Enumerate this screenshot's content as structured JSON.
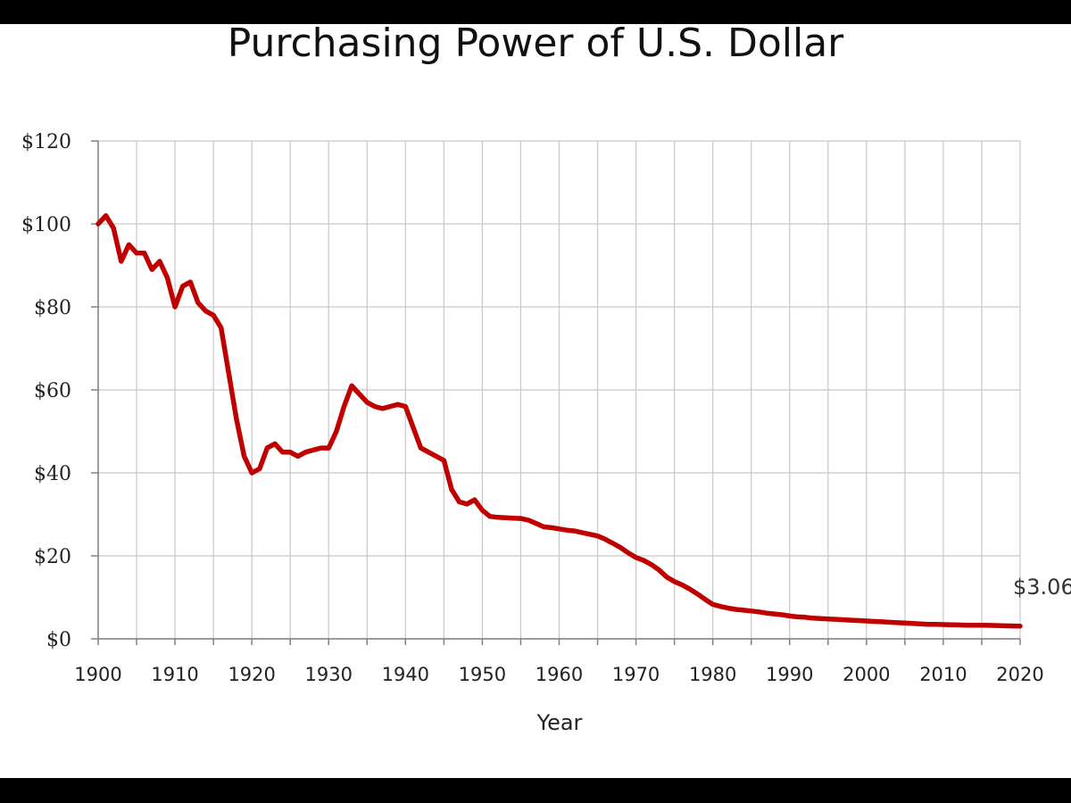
{
  "chart_data": {
    "type": "line",
    "title": "Purchasing Power of U.S. Dollar",
    "xlabel": "Year",
    "ylabel": "",
    "xlim": [
      1900,
      2020
    ],
    "ylim": [
      0,
      120
    ],
    "x_ticks": [
      1900,
      1910,
      1920,
      1930,
      1940,
      1950,
      1960,
      1970,
      1980,
      1990,
      2000,
      2010,
      2020
    ],
    "y_ticks": [
      0,
      20,
      40,
      60,
      80,
      100,
      120
    ],
    "y_tick_labels": [
      "$0",
      "$20",
      "$40",
      "$60",
      "$80",
      "$100",
      "$120"
    ],
    "grid": true,
    "line_color": "#c00000",
    "annotation": {
      "text": "$3.06",
      "x": 2020,
      "y": 3.06
    },
    "series": [
      {
        "x": [
          1900,
          1901,
          1902,
          1903,
          1904,
          1905,
          1906,
          1907,
          1908,
          1909,
          1910,
          1911,
          1912,
          1913,
          1914,
          1915,
          1916,
          1917,
          1918,
          1919,
          1920,
          1921,
          1922,
          1923,
          1924,
          1925,
          1926,
          1927,
          1928,
          1929,
          1930,
          1931,
          1932,
          1933,
          1934,
          1935,
          1936,
          1937,
          1938,
          1939,
          1940,
          1941,
          1942,
          1943,
          1944,
          1945,
          1946,
          1947,
          1948,
          1949,
          1950,
          1951,
          1952,
          1953,
          1954,
          1955,
          1956,
          1957,
          1958,
          1959,
          1960,
          1961,
          1962,
          1963,
          1964,
          1965,
          1966,
          1967,
          1968,
          1969,
          1970,
          1971,
          1972,
          1973,
          1974,
          1975,
          1976,
          1977,
          1978,
          1979,
          1980,
          1981,
          1982,
          1983,
          1984,
          1985,
          1986,
          1987,
          1988,
          1989,
          1990,
          1991,
          1992,
          1993,
          1994,
          1995,
          1996,
          1997,
          1998,
          1999,
          2000,
          2001,
          2002,
          2003,
          2004,
          2005,
          2006,
          2007,
          2008,
          2009,
          2010,
          2011,
          2012,
          2013,
          2014,
          2015,
          2016,
          2017,
          2018,
          2019,
          2020
        ],
        "values": [
          100,
          102,
          99,
          91,
          95,
          93,
          93,
          89,
          91,
          87,
          80,
          85,
          86,
          81,
          79,
          78,
          75,
          64,
          53,
          44,
          40,
          41,
          46,
          47,
          45,
          45,
          44,
          45,
          45.5,
          46,
          46,
          50,
          56,
          61,
          59,
          57,
          56,
          55.5,
          56,
          56.5,
          56,
          51,
          46,
          45,
          44,
          43,
          36,
          33,
          32.5,
          33.5,
          31,
          29.5,
          29.3,
          29.2,
          29.1,
          29,
          28.6,
          27.8,
          27,
          26.8,
          26.5,
          26.2,
          26,
          25.6,
          25.2,
          24.8,
          24,
          23,
          22,
          20.7,
          19.6,
          18.9,
          17.9,
          16.6,
          14.9,
          13.8,
          13,
          12,
          10.8,
          9.5,
          8.3,
          7.8,
          7.4,
          7.1,
          6.9,
          6.7,
          6.5,
          6.2,
          6,
          5.8,
          5.5,
          5.3,
          5.2,
          5,
          4.9,
          4.8,
          4.7,
          4.6,
          4.5,
          4.4,
          4.3,
          4.2,
          4.1,
          4,
          3.9,
          3.8,
          3.7,
          3.6,
          3.5,
          3.5,
          3.45,
          3.4,
          3.35,
          3.3,
          3.3,
          3.3,
          3.25,
          3.2,
          3.15,
          3.1,
          3.06
        ]
      }
    ]
  }
}
